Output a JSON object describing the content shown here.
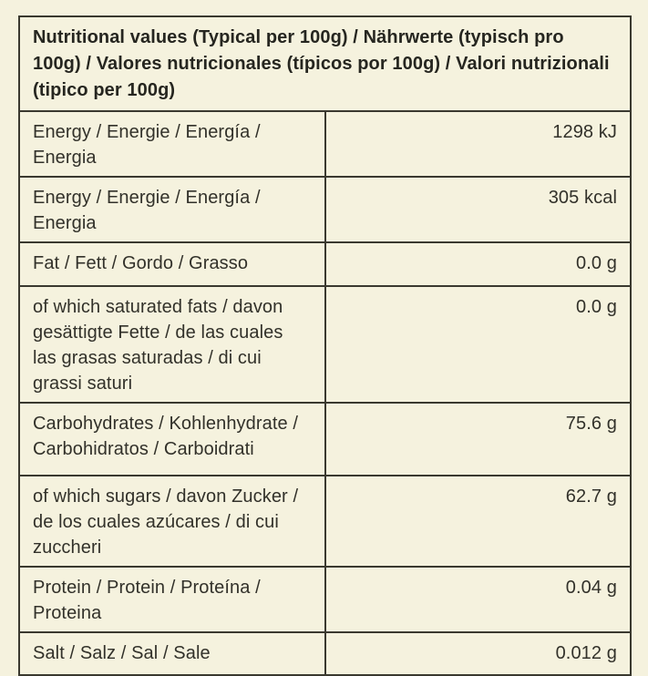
{
  "colors": {
    "background": "#f5f2de",
    "border": "#3a392f",
    "text": "#32312a"
  },
  "table": {
    "title": "Nutritional values (Typical per 100g) / Nährwerte (typisch pro 100g) / Valores nutricionales (típicos por 100g) / Valori nutrizionali (tipico per 100g)",
    "rows": [
      {
        "label": "Energy / Energie / Energía / Energia",
        "value": "1298 kJ"
      },
      {
        "label": "Energy / Energie / Energía / Energia",
        "value": "305 kcal"
      },
      {
        "label": "Fat / Fett / Gordo / Grasso",
        "value": "0.0 g"
      },
      {
        "label": "of which saturated fats / davon gesättigte Fette / de las cuales las grasas saturadas / di cui grassi saturi",
        "value": "0.0 g"
      },
      {
        "label": "Carbohydrates / Kohlenhydrate / Carbohidratos / Carboidrati",
        "value": "75.6 g"
      },
      {
        "label": "of which sugars / davon Zucker / de los cuales azúcares / di cui zuccheri",
        "value": "62.7 g"
      },
      {
        "label": "Protein / Protein / Proteína / Proteina",
        "value": "0.04 g"
      },
      {
        "label": "Salt / Salz / Sal / Sale",
        "value": "0.012 g"
      }
    ]
  }
}
